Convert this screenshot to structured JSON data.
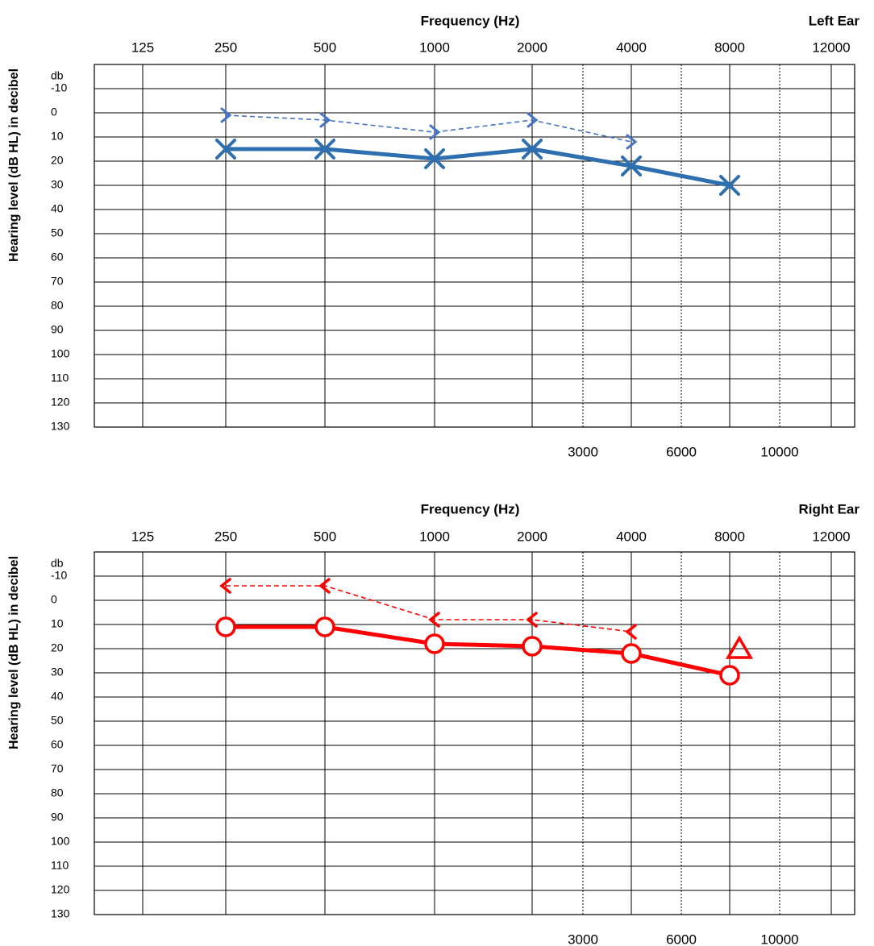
{
  "chart_data": [
    {
      "type": "line",
      "title": "Frequency (Hz)",
      "ear_label": "Left Ear",
      "ylabel": "Hearing level (dB HL) in decibel",
      "y_unit": "db",
      "x_ticks_top": [
        "125",
        "250",
        "500",
        "1000",
        "2000",
        "4000",
        "8000",
        "12000"
      ],
      "x_ticks_bottom": [
        "3000",
        "6000",
        "10000"
      ],
      "y_ticks": [
        "-10",
        "0",
        "10",
        "20",
        "30",
        "40",
        "50",
        "60",
        "70",
        "80",
        "90",
        "100",
        "110",
        "120",
        "130"
      ],
      "ylim": [
        -20,
        140
      ],
      "y_inverted": true,
      "grid": true,
      "accent_color": "#2e6fb0",
      "series": [
        {
          "marker": "x",
          "line_style": "solid",
          "color": "#2e6fb0",
          "x": [
            250,
            500,
            1000,
            2000,
            4000,
            8000
          ],
          "y": [
            15,
            15,
            19,
            15,
            22,
            30
          ]
        },
        {
          "marker": "gt",
          "line_style": "dashed",
          "color": "#4472c4",
          "x": [
            250,
            500,
            1000,
            2000,
            4000
          ],
          "y": [
            1,
            3,
            8,
            3,
            12
          ]
        }
      ]
    },
    {
      "type": "line",
      "title": "Frequency (Hz)",
      "ear_label": "Right Ear",
      "ylabel": "Hearing level (dB HL) in decibel",
      "y_unit": "db",
      "x_ticks_top": [
        "125",
        "250",
        "500",
        "1000",
        "2000",
        "4000",
        "8000",
        "12000"
      ],
      "x_ticks_bottom": [
        "3000",
        "6000",
        "10000"
      ],
      "y_ticks": [
        "-10",
        "0",
        "10",
        "20",
        "30",
        "40",
        "50",
        "60",
        "70",
        "80",
        "90",
        "100",
        "110",
        "120",
        "130"
      ],
      "ylim": [
        -20,
        140
      ],
      "y_inverted": true,
      "grid": true,
      "accent_color": "#c00000",
      "series": [
        {
          "marker": "o",
          "line_style": "solid",
          "color": "#ff0000",
          "x": [
            250,
            500,
            1000,
            2000,
            4000,
            8000
          ],
          "y": [
            11,
            11,
            18,
            19,
            22,
            31
          ]
        },
        {
          "marker": "lt",
          "line_style": "dashed",
          "color": "#ff0000",
          "x": [
            250,
            500,
            1000,
            2000,
            4000
          ],
          "y": [
            -6,
            -6,
            8,
            8,
            13
          ]
        },
        {
          "marker": "triangle",
          "line_style": "none",
          "color": "#ff0000",
          "x": [
            8000
          ],
          "y": [
            20
          ]
        }
      ]
    }
  ]
}
